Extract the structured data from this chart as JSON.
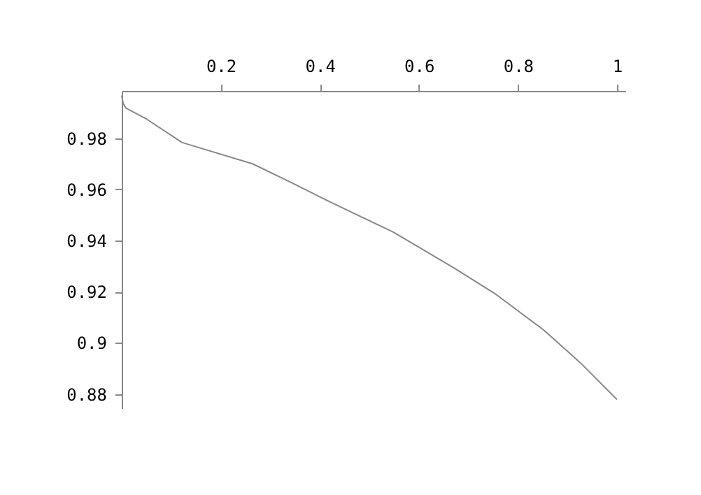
{
  "chart_data": {
    "type": "line",
    "x": [
      0,
      0.003,
      0.0085,
      0.05,
      0.122,
      0.264,
      0.341,
      0.415,
      0.548,
      0.67,
      0.756,
      0.852,
      0.926,
      1.0
    ],
    "series": [
      {
        "color": "#888888",
        "values": [
          0.9967,
          0.9935,
          0.9918,
          0.9875,
          0.9783,
          0.97,
          0.9628,
          0.9556,
          0.9433,
          0.9294,
          0.9189,
          0.905,
          0.8922,
          0.8778
        ]
      }
    ],
    "xlim": [
      0,
      1.017
    ],
    "ylim": [
      0.8744,
      0.9985
    ],
    "xticks": [
      0.2,
      0.4,
      0.6,
      0.8,
      1
    ],
    "yticks": [
      0.88,
      0.9,
      0.92,
      0.94,
      0.96,
      0.98
    ],
    "grid": false,
    "legend": false,
    "marker": "none",
    "line_style": "solid"
  }
}
